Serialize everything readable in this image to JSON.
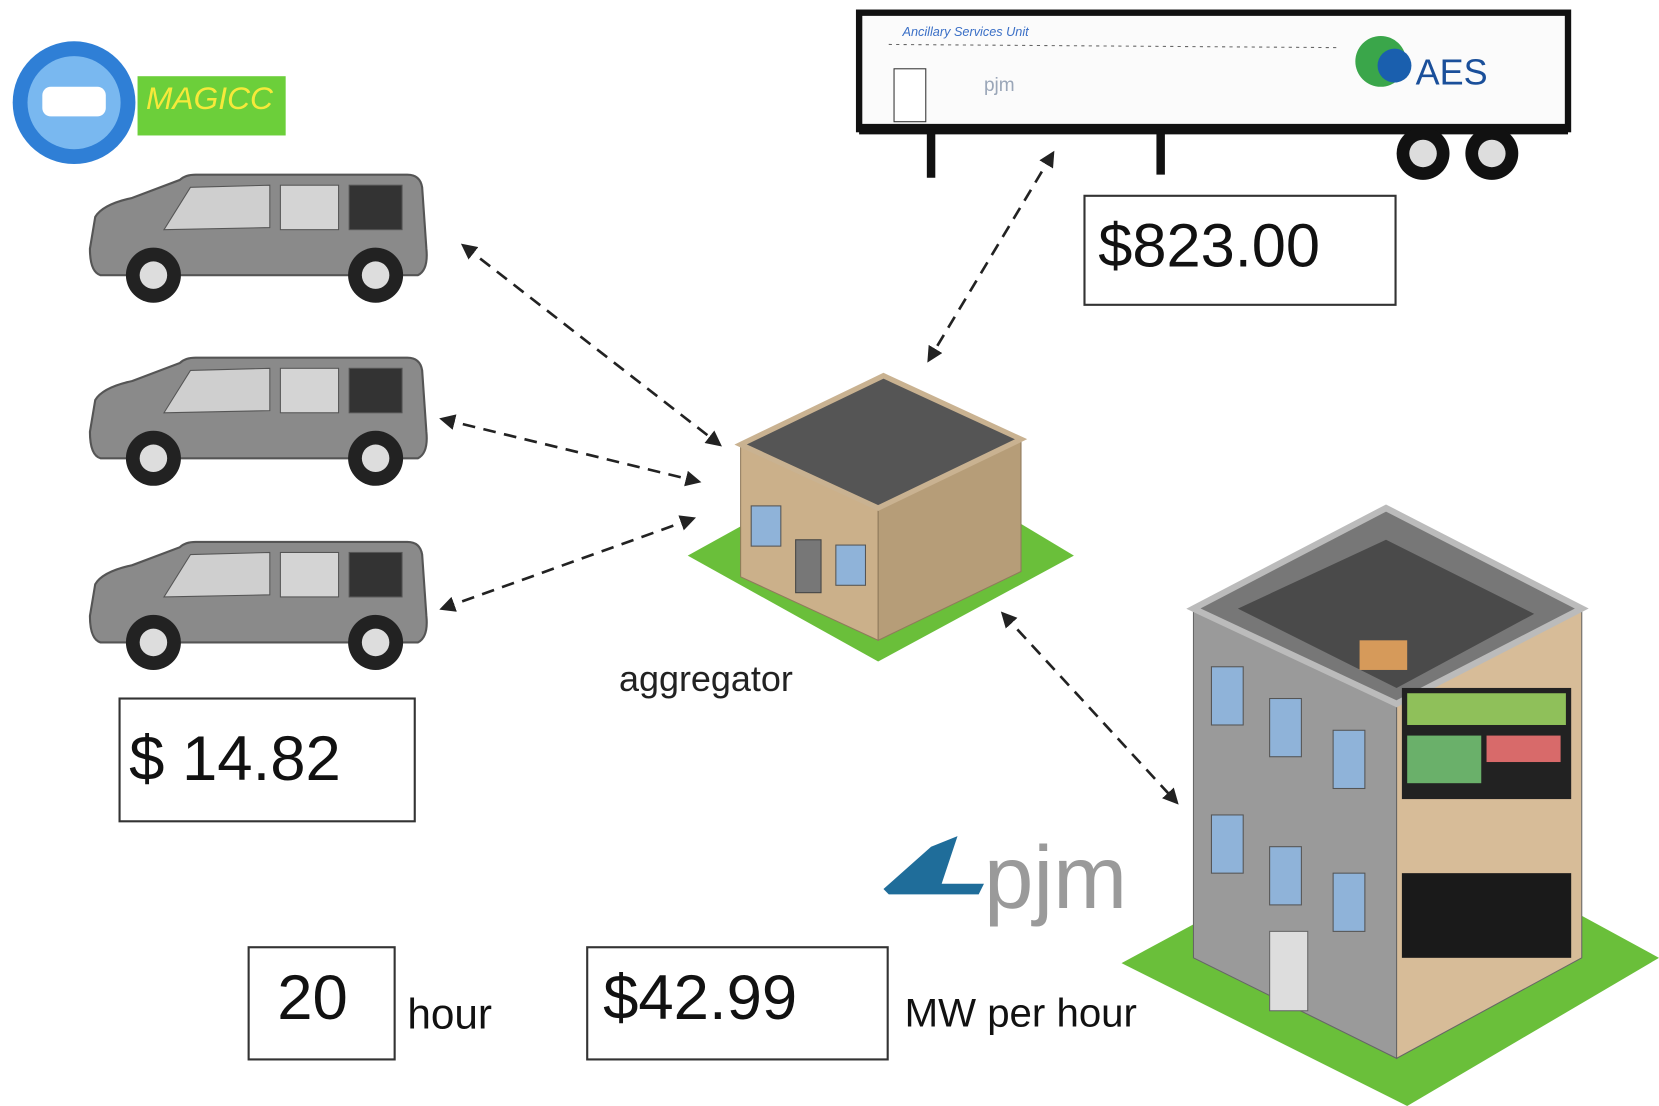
{
  "logo": {
    "text": "MAGICC"
  },
  "trailer": {
    "title": "Ancillary Services Unit",
    "logo": "AES",
    "sponsor": "pjm"
  },
  "market_price": "$823.00",
  "vehicle_payment": "$ 14.82",
  "aggregator": {
    "label": "aggregator"
  },
  "grid_operator": {
    "logo": "pjm"
  },
  "duration": {
    "value": "20",
    "unit": "hour"
  },
  "rate": {
    "value": "$42.99",
    "unit": "MW per hour"
  }
}
